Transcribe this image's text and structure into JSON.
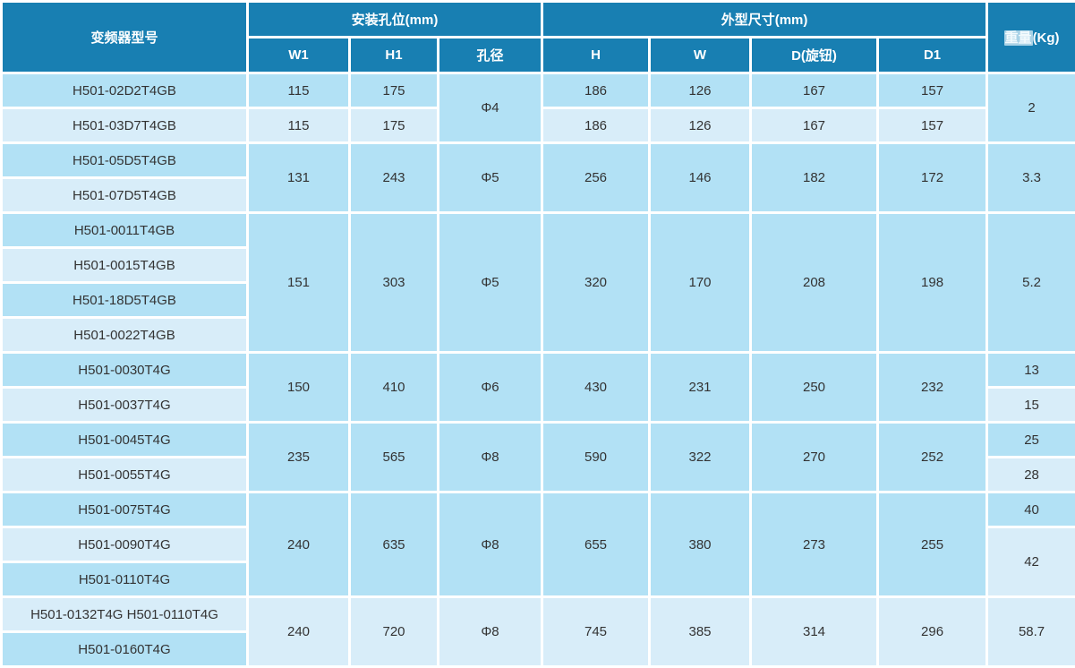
{
  "palette": {
    "header_bg": "#187fb2",
    "header_text": "#ffffff",
    "row_dark": "#b2e1f5",
    "row_light": "#d8edf9",
    "grid_line": "#ffffff",
    "body_text": "#333333"
  },
  "table": {
    "header": {
      "model": "变频器型号",
      "mounting_group": "安装孔位(mm)",
      "mounting_cols": [
        "W1",
        "H1",
        "孔径"
      ],
      "dimension_group": "外型尺寸(mm)",
      "dimension_cols": [
        "H",
        "W",
        "D(旋钮)",
        "D1"
      ],
      "weight": {
        "highlight": "重量",
        "rest": "(Kg)"
      }
    },
    "column_keys": [
      "model",
      "w1",
      "h1",
      "hole-diameter",
      "h",
      "w",
      "d-knob",
      "d1",
      "weight"
    ],
    "body": [
      {
        "cells": [
          {
            "t": "H501-02D2T4GB"
          },
          {
            "t": "115"
          },
          {
            "t": "175"
          },
          {
            "t": "Φ4",
            "rs": 2
          },
          {
            "t": "186"
          },
          {
            "t": "126"
          },
          {
            "t": "167"
          },
          {
            "t": "157"
          },
          {
            "t": "2",
            "rs": 2
          }
        ]
      },
      {
        "cells": [
          {
            "t": "H501-03D7T4GB"
          },
          {
            "t": "115"
          },
          {
            "t": "175"
          },
          null,
          {
            "t": "186"
          },
          {
            "t": "126"
          },
          {
            "t": "167"
          },
          {
            "t": "157"
          },
          null
        ]
      },
      {
        "cells": [
          {
            "t": "H501-05D5T4GB"
          },
          {
            "t": "131",
            "rs": 2
          },
          {
            "t": "243",
            "rs": 2
          },
          {
            "t": "Φ5",
            "rs": 2
          },
          {
            "t": "256",
            "rs": 2
          },
          {
            "t": "146",
            "rs": 2
          },
          {
            "t": "182",
            "rs": 2
          },
          {
            "t": "172",
            "rs": 2
          },
          {
            "t": "3.3",
            "rs": 2
          }
        ]
      },
      {
        "cells": [
          {
            "t": "H501-07D5T4GB"
          },
          null,
          null,
          null,
          null,
          null,
          null,
          null,
          null
        ]
      },
      {
        "cells": [
          {
            "t": "H501-0011T4GB"
          },
          {
            "t": "151",
            "rs": 4
          },
          {
            "t": "303",
            "rs": 4
          },
          {
            "t": "Φ5",
            "rs": 4
          },
          {
            "t": "320",
            "rs": 4
          },
          {
            "t": "170",
            "rs": 4
          },
          {
            "t": "208",
            "rs": 4
          },
          {
            "t": "198",
            "rs": 4
          },
          {
            "t": "5.2",
            "rs": 4
          }
        ]
      },
      {
        "cells": [
          {
            "t": "H501-0015T4GB"
          },
          null,
          null,
          null,
          null,
          null,
          null,
          null,
          null
        ]
      },
      {
        "cells": [
          {
            "t": "H501-18D5T4GB"
          },
          null,
          null,
          null,
          null,
          null,
          null,
          null,
          null
        ]
      },
      {
        "cells": [
          {
            "t": "H501-0022T4GB"
          },
          null,
          null,
          null,
          null,
          null,
          null,
          null,
          null
        ]
      },
      {
        "cells": [
          {
            "t": "H501-0030T4G"
          },
          {
            "t": "150",
            "rs": 2
          },
          {
            "t": "410",
            "rs": 2
          },
          {
            "t": "Φ6",
            "rs": 2
          },
          {
            "t": "430",
            "rs": 2
          },
          {
            "t": "231",
            "rs": 2
          },
          {
            "t": "250",
            "rs": 2
          },
          {
            "t": "232",
            "rs": 2
          },
          {
            "t": "13"
          }
        ]
      },
      {
        "cells": [
          {
            "t": "H501-0037T4G"
          },
          null,
          null,
          null,
          null,
          null,
          null,
          null,
          {
            "t": "15"
          }
        ]
      },
      {
        "cells": [
          {
            "t": "H501-0045T4G"
          },
          {
            "t": "235",
            "rs": 2
          },
          {
            "t": "565",
            "rs": 2
          },
          {
            "t": "Φ8",
            "rs": 2
          },
          {
            "t": "590",
            "rs": 2
          },
          {
            "t": "322",
            "rs": 2
          },
          {
            "t": "270",
            "rs": 2
          },
          {
            "t": "252",
            "rs": 2
          },
          {
            "t": "25"
          }
        ]
      },
      {
        "cells": [
          {
            "t": "H501-0055T4G"
          },
          null,
          null,
          null,
          null,
          null,
          null,
          null,
          {
            "t": "28"
          }
        ]
      },
      {
        "cells": [
          {
            "t": "H501-0075T4G"
          },
          {
            "t": "240",
            "rs": 3
          },
          {
            "t": "635",
            "rs": 3
          },
          {
            "t": "Φ8",
            "rs": 3
          },
          {
            "t": "655",
            "rs": 3
          },
          {
            "t": "380",
            "rs": 3
          },
          {
            "t": "273",
            "rs": 3
          },
          {
            "t": "255",
            "rs": 3
          },
          {
            "t": "40"
          }
        ]
      },
      {
        "cells": [
          {
            "t": "H501-0090T4G"
          },
          null,
          null,
          null,
          null,
          null,
          null,
          null,
          {
            "t": "42",
            "rs": 2
          }
        ]
      },
      {
        "cells": [
          {
            "t": "H501-0110T4G"
          },
          null,
          null,
          null,
          null,
          null,
          null,
          null,
          null
        ]
      },
      {
        "cells": [
          {
            "t": "H501-0132T4G H501-0110T4G"
          },
          {
            "t": "240",
            "rs": 2
          },
          {
            "t": "720",
            "rs": 2
          },
          {
            "t": "Φ8",
            "rs": 2
          },
          {
            "t": "745",
            "rs": 2
          },
          {
            "t": "385",
            "rs": 2
          },
          {
            "t": "314",
            "rs": 2
          },
          {
            "t": "296",
            "rs": 2
          },
          {
            "t": "58.7",
            "rs": 2
          }
        ]
      },
      {
        "cells": [
          {
            "t": "H501-0160T4G"
          },
          null,
          null,
          null,
          null,
          null,
          null,
          null,
          null
        ]
      }
    ]
  },
  "chart_data": {
    "type": "table",
    "columns": [
      "变频器型号",
      "W1",
      "H1",
      "孔径",
      "H",
      "W",
      "D(旋钮)",
      "D1",
      "重量(Kg)"
    ],
    "rows": [
      [
        "H501-02D2T4GB",
        "115",
        "175",
        "Φ4",
        "186",
        "126",
        "167",
        "157",
        "2"
      ],
      [
        "H501-03D7T4GB",
        "115",
        "175",
        "Φ4",
        "186",
        "126",
        "167",
        "157",
        "2"
      ],
      [
        "H501-05D5T4GB",
        "131",
        "243",
        "Φ5",
        "256",
        "146",
        "182",
        "172",
        "3.3"
      ],
      [
        "H501-07D5T4GB",
        "131",
        "243",
        "Φ5",
        "256",
        "146",
        "182",
        "172",
        "3.3"
      ],
      [
        "H501-0011T4GB",
        "151",
        "303",
        "Φ5",
        "320",
        "170",
        "208",
        "198",
        "5.2"
      ],
      [
        "H501-0015T4GB",
        "151",
        "303",
        "Φ5",
        "320",
        "170",
        "208",
        "198",
        "5.2"
      ],
      [
        "H501-18D5T4GB",
        "151",
        "303",
        "Φ5",
        "320",
        "170",
        "208",
        "198",
        "5.2"
      ],
      [
        "H501-0022T4GB",
        "151",
        "303",
        "Φ5",
        "320",
        "170",
        "208",
        "198",
        "5.2"
      ],
      [
        "H501-0030T4G",
        "150",
        "410",
        "Φ6",
        "430",
        "231",
        "250",
        "232",
        "13"
      ],
      [
        "H501-0037T4G",
        "150",
        "410",
        "Φ6",
        "430",
        "231",
        "250",
        "232",
        "15"
      ],
      [
        "H501-0045T4G",
        "235",
        "565",
        "Φ8",
        "590",
        "322",
        "270",
        "252",
        "25"
      ],
      [
        "H501-0055T4G",
        "235",
        "565",
        "Φ8",
        "590",
        "322",
        "270",
        "252",
        "28"
      ],
      [
        "H501-0075T4G",
        "240",
        "635",
        "Φ8",
        "655",
        "380",
        "273",
        "255",
        "40"
      ],
      [
        "H501-0090T4G",
        "240",
        "635",
        "Φ8",
        "655",
        "380",
        "273",
        "255",
        "42"
      ],
      [
        "H501-0110T4G",
        "240",
        "635",
        "Φ8",
        "655",
        "380",
        "273",
        "255",
        "42"
      ],
      [
        "H501-0132T4G H501-0110T4G",
        "240",
        "720",
        "Φ8",
        "745",
        "385",
        "314",
        "296",
        "58.7"
      ],
      [
        "H501-0160T4G",
        "240",
        "720",
        "Φ8",
        "745",
        "385",
        "314",
        "296",
        "58.7"
      ]
    ]
  }
}
